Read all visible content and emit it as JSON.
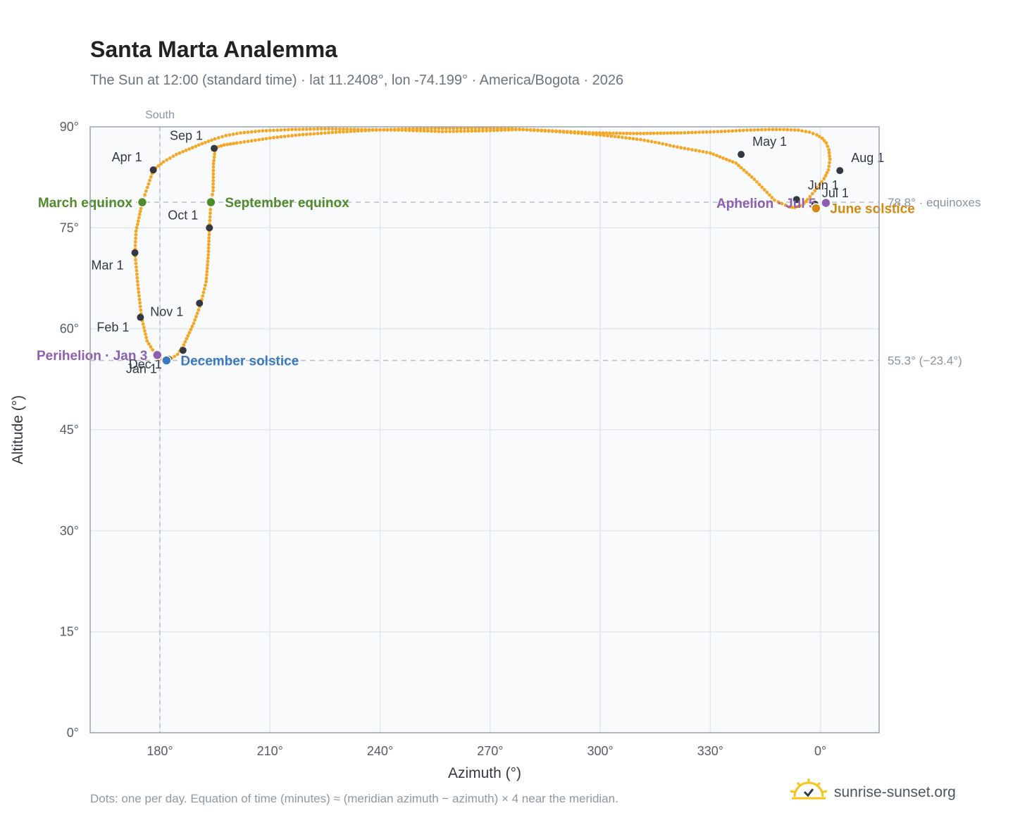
{
  "title": "Santa Marta Analemma",
  "subtitle": "The Sun at 12:00 (standard time) · lat 11.2408°, lon -74.199° · America/Bogota · 2026",
  "footnote": "Dots: one per day. Equation of time (minutes) ≈ (meridian azimuth − azimuth) × 4 near the meridian.",
  "brand": {
    "name": "sunrise-sunset.org",
    "logo_icon": "sun-check-logo-icon",
    "logo_color": "#f5c518"
  },
  "colors": {
    "curve": "#f5a623",
    "month_dot": "#333842",
    "equinox": "#4f8a2b",
    "december_solstice": "#3a78c0",
    "june_solstice": "#d08a12",
    "perihelion_aphelion": "#8e5fb0",
    "reference_line": "#b9bfca",
    "plot_bg": "#f8fafc",
    "grid": "#e3e7ee",
    "frame": "#9aa3b2"
  },
  "chart_data": {
    "type": "scatter",
    "xlabel": "Azimuth (°)",
    "ylabel": "Altitude (°)",
    "x_ticks": [
      "180°",
      "210°",
      "240°",
      "270°",
      "300°",
      "330°",
      "0°"
    ],
    "x_tick_values": [
      180,
      210,
      240,
      270,
      300,
      330,
      360
    ],
    "y_ticks": [
      "0°",
      "15°",
      "30°",
      "45°",
      "60°",
      "75°",
      "90°"
    ],
    "y_tick_values": [
      0,
      15,
      30,
      45,
      60,
      75,
      90
    ],
    "xlim": [
      161,
      376
    ],
    "ylim": [
      0,
      90
    ],
    "grid": true,
    "meridian": {
      "azimuth": 180,
      "label": "South"
    },
    "reference_lines": [
      {
        "altitude": 78.8,
        "label": "78.8° · equinoxes"
      },
      {
        "altitude": 55.3,
        "label": "55.3° (−23.4°)"
      }
    ],
    "series": [
      {
        "points": [
          [
            179,
            56.0
          ],
          [
            176.5,
            58.2
          ],
          [
            175,
            61.7
          ],
          [
            174,
            66.5
          ],
          [
            173.2,
            71.3
          ],
          [
            173.5,
            74.5
          ],
          [
            174.5,
            77.0
          ],
          [
            175.2,
            78.8
          ],
          [
            176.6,
            81.0
          ],
          [
            178.2,
            83.6
          ],
          [
            181,
            84.8
          ],
          [
            184.5,
            85.9
          ],
          [
            188,
            86.7
          ],
          [
            191.5,
            87.5
          ],
          [
            195,
            88.2
          ],
          [
            198,
            88.7
          ],
          [
            202,
            89.1
          ],
          [
            208,
            89.4
          ],
          [
            216,
            89.6
          ],
          [
            225,
            89.7
          ],
          [
            235,
            89.6
          ],
          [
            246,
            89.5
          ],
          [
            257,
            89.3
          ],
          [
            268,
            89.4
          ],
          [
            278,
            89.6
          ],
          [
            288,
            89.3
          ],
          [
            298,
            88.9
          ],
          [
            305,
            88.5
          ],
          [
            311,
            88.1
          ],
          [
            316,
            87.6
          ],
          [
            320,
            87.1
          ],
          [
            324,
            86.7
          ],
          [
            330,
            86.1
          ],
          [
            337,
            84.6
          ],
          [
            342,
            82.2
          ],
          [
            347.5,
            79.1
          ],
          [
            349.5,
            78.6
          ],
          [
            351.5,
            78.1
          ],
          [
            353,
            78.0
          ],
          [
            354.5,
            78.3
          ],
          [
            355.5,
            78.6
          ],
          [
            356.5,
            79.2
          ],
          [
            358.5,
            80.5
          ],
          [
            361,
            82.3
          ],
          [
            362.2,
            83.6
          ],
          [
            362.6,
            85.2
          ],
          [
            362.3,
            86.6
          ],
          [
            361.6,
            87.6
          ],
          [
            360.5,
            88.3
          ],
          [
            359,
            88.8
          ],
          [
            357,
            89.2
          ],
          [
            354,
            89.5
          ],
          [
            350,
            89.6
          ],
          [
            346,
            89.6
          ],
          [
            340,
            89.5
          ],
          [
            333,
            89.3
          ],
          [
            322,
            89.1
          ],
          [
            310,
            89.0
          ],
          [
            298,
            89.1
          ],
          [
            287,
            89.4
          ],
          [
            276,
            89.7
          ],
          [
            268,
            89.8
          ],
          [
            258,
            89.8
          ],
          [
            248,
            89.7
          ],
          [
            238,
            89.5
          ],
          [
            228,
            89.2
          ],
          [
            218,
            88.8
          ],
          [
            211,
            88.4
          ],
          [
            206,
            88.0
          ],
          [
            201,
            87.6
          ],
          [
            197.5,
            87.3
          ],
          [
            195.1,
            86.9
          ],
          [
            194.6,
            84.5
          ],
          [
            194.5,
            80.5
          ],
          [
            193.9,
            78.8
          ],
          [
            193.5,
            75.0
          ],
          [
            193.2,
            71.0
          ],
          [
            192.6,
            67.0
          ],
          [
            191.2,
            63.8
          ],
          [
            189.2,
            60.8
          ],
          [
            186.5,
            57.6
          ],
          [
            184.8,
            56.2
          ],
          [
            182.3,
            55.3
          ],
          [
            180.5,
            55.5
          ],
          [
            179,
            56.0
          ]
        ]
      }
    ],
    "month_markers": [
      {
        "label": "Jan 1",
        "az": 182.3,
        "alt": 55.5
      },
      {
        "label": "Feb 1",
        "az": 174.7,
        "alt": 61.7
      },
      {
        "label": "Mar 1",
        "az": 173.2,
        "alt": 71.3
      },
      {
        "label": "Apr 1",
        "az": 178.2,
        "alt": 83.6
      },
      {
        "label": "May 1",
        "az": 338.4,
        "alt": 85.9
      },
      {
        "label": "Jun 1",
        "az": 353.5,
        "alt": 79.2
      },
      {
        "label": "Jul 1",
        "az": 358.5,
        "alt": 78.5
      },
      {
        "label": "Aug 1",
        "az": 365.3,
        "alt": 83.5
      },
      {
        "label": "Sep 1",
        "az": 194.8,
        "alt": 86.8
      },
      {
        "label": "Oct 1",
        "az": 193.5,
        "alt": 75.0
      },
      {
        "label": "Nov 1",
        "az": 190.8,
        "alt": 63.8
      },
      {
        "label": "Dec 1",
        "az": 186.3,
        "alt": 56.8
      }
    ],
    "events": [
      {
        "label": "March equinox",
        "az": 175.2,
        "alt": 78.8,
        "color": "equinox",
        "side": "left"
      },
      {
        "label": "September equinox",
        "az": 193.9,
        "alt": 78.8,
        "color": "equinox",
        "side": "right"
      },
      {
        "label": "Perihelion · Jan 3",
        "az": 179.3,
        "alt": 56.1,
        "color": "perihelion_aphelion",
        "side": "left"
      },
      {
        "label": "December solstice",
        "az": 181.8,
        "alt": 55.3,
        "color": "december_solstice",
        "side": "right"
      },
      {
        "label": "Aphelion · Jul 5",
        "az": 361.5,
        "alt": 78.7,
        "color": "perihelion_aphelion",
        "side": "left"
      },
      {
        "label": "June solstice",
        "az": 358.8,
        "alt": 77.9,
        "color": "june_solstice",
        "side": "right"
      }
    ]
  }
}
